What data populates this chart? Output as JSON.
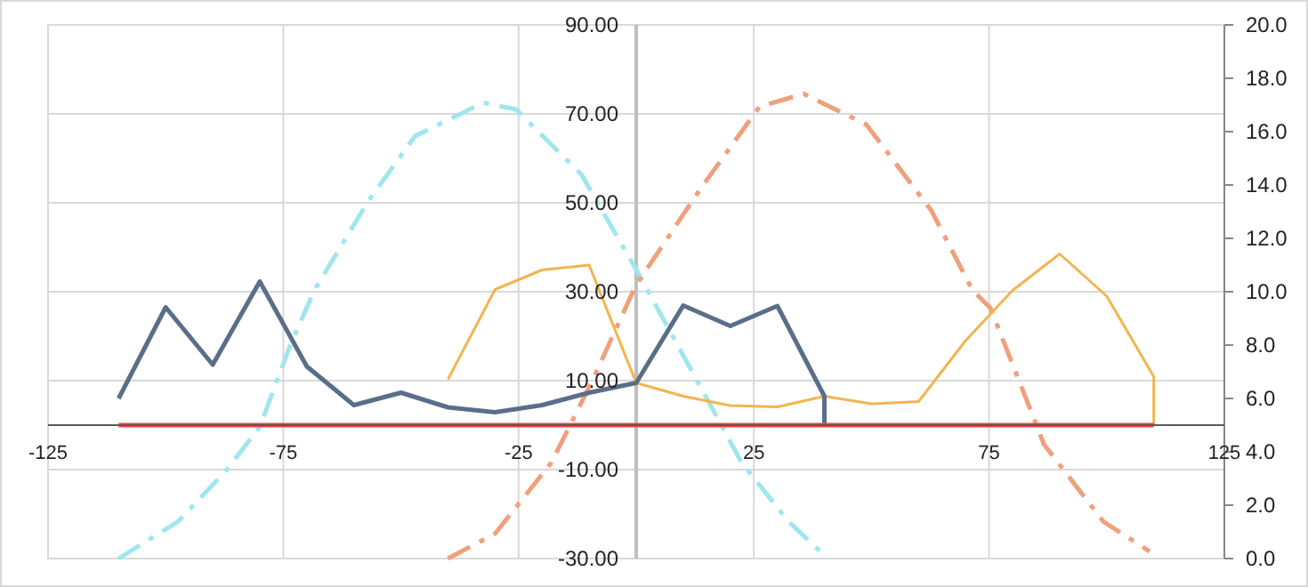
{
  "chart_data": {
    "type": "line",
    "xlim": [
      -125,
      125
    ],
    "xticks": [
      -125,
      -75,
      -25,
      25,
      75,
      125
    ],
    "ylim": [
      -30,
      90
    ],
    "yticks": [
      {
        "value": -30,
        "label": "-30.00"
      },
      {
        "value": -10,
        "label": "-10.00"
      },
      {
        "value": 10,
        "label": "10.00"
      },
      {
        "value": 30,
        "label": "30.00"
      },
      {
        "value": 50,
        "label": "50.00"
      },
      {
        "value": 70,
        "label": "70.00"
      },
      {
        "value": 90,
        "label": "90.00"
      }
    ],
    "y2lim": [
      0,
      20
    ],
    "y2ticks": [
      {
        "value": 0,
        "label": "0.0"
      },
      {
        "value": 2,
        "label": "2.0"
      },
      {
        "value": 4,
        "label": "4.0"
      },
      {
        "value": 6,
        "label": "6.0"
      },
      {
        "value": 8,
        "label": "8.0"
      },
      {
        "value": 10,
        "label": "10.0"
      },
      {
        "value": 12,
        "label": "12.0"
      },
      {
        "value": 14,
        "label": "14.0"
      },
      {
        "value": 16,
        "label": "16.0"
      },
      {
        "value": 18,
        "label": "18.0"
      },
      {
        "value": 20,
        "label": "20.0"
      }
    ],
    "grid": true,
    "marker": "none",
    "series": [
      {
        "color": "#9fe6ee",
        "line_style": "dashed",
        "x": [
          -110,
          -97.4,
          -87.3,
          -80,
          -73.4,
          -68.4,
          -57,
          -47,
          -32.5,
          -25.5,
          -11.6,
          -4,
          0,
          13.5,
          22.4,
          32.4,
          40
        ],
        "values": [
          -30,
          -21.7,
          -10.4,
          -0.4,
          18.3,
          30.3,
          50.3,
          65,
          72.5,
          71,
          56.3,
          42.3,
          35,
          8.9,
          -8.4,
          -21.7,
          -29.3
        ]
      },
      {
        "color": "#f0a07c",
        "line_style": "dashed",
        "x": [
          -40,
          -30,
          -18,
          -9.2,
          0,
          2.2,
          13.5,
          26.2,
          35.6,
          48.9,
          62.7,
          71.5,
          75.3,
          86.7,
          99.3,
          109.1
        ],
        "values": [
          -30,
          -24.4,
          -8.4,
          10.3,
          31.6,
          35,
          52.9,
          71.6,
          74.5,
          67.6,
          48.3,
          30.3,
          26.3,
          -4.4,
          -21.7,
          -28.4
        ]
      },
      {
        "color": "#f2b550",
        "line_style": "solid",
        "x": [
          -40,
          -30,
          -20,
          -10,
          0,
          10,
          20,
          30,
          40,
          50,
          60,
          70,
          80,
          90,
          100,
          110,
          110
        ],
        "values": [
          10.3,
          30.5,
          34.9,
          36,
          9.5,
          6.5,
          4.4,
          4.1,
          6.5,
          4.8,
          5.3,
          19,
          30.3,
          38.5,
          29,
          10.9,
          0
        ]
      },
      {
        "color": "#5a6e8a",
        "line_style": "solid",
        "x": [
          -110,
          -100,
          -90,
          -80,
          -70,
          -60,
          -50,
          -40,
          -30,
          -20,
          -10,
          0,
          10,
          20,
          30,
          40,
          40
        ],
        "values": [
          6,
          26.5,
          13.6,
          32.3,
          13.2,
          4.5,
          7.3,
          4,
          2.9,
          4.5,
          7.3,
          9.5,
          26.9,
          22.3,
          26.8,
          6.5,
          0
        ]
      },
      {
        "color": "#ff4040",
        "line_style": "solid",
        "x": [
          -110,
          110
        ],
        "values": [
          0,
          0
        ]
      }
    ]
  }
}
